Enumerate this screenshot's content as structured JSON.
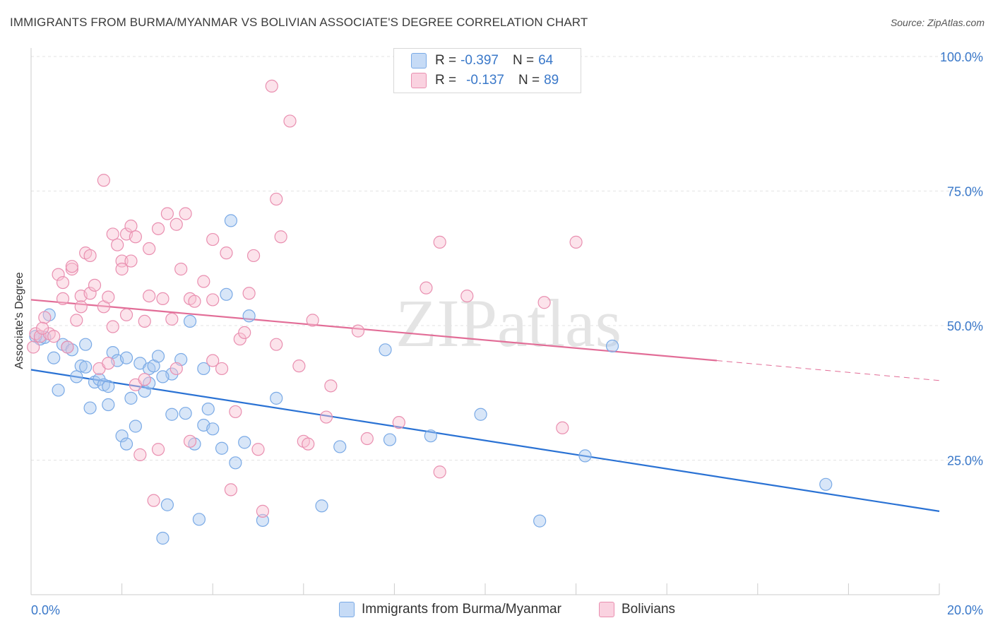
{
  "title": "IMMIGRANTS FROM BURMA/MYANMAR VS BOLIVIAN ASSOCIATE'S DEGREE CORRELATION CHART",
  "source": "Source: ZipAtlas.com",
  "watermark": "ZIPatlas",
  "stats": [
    {
      "r_label": "R =",
      "r_value": "-0.397",
      "n_label": "N =",
      "n_value": "64",
      "color": "#a8c8f0",
      "border": "#6f9fd8"
    },
    {
      "r_label": "R =",
      "r_value": "-0.137",
      "n_label": "N =",
      "n_value": "89",
      "color": "#f8c0d2",
      "border": "#e890ae"
    }
  ],
  "legend": [
    {
      "label": "Immigrants from Burma/Myanmar",
      "color": "#a8c8f0",
      "border": "#6f9fd8"
    },
    {
      "label": "Bolivians",
      "color": "#f8c0d2",
      "border": "#e890ae"
    }
  ],
  "chart_data": {
    "type": "scatter",
    "title": "IMMIGRANTS FROM BURMA/MYANMAR VS BOLIVIAN ASSOCIATE'S DEGREE CORRELATION CHART",
    "xlabel": "",
    "ylabel": "Associate's Degree",
    "xlim": [
      0,
      20
    ],
    "ylim": [
      0,
      100
    ],
    "x_tick_labels": [
      "0.0%",
      "20.0%"
    ],
    "y_ticks": [
      25,
      50,
      75,
      100
    ],
    "y_tick_labels": [
      "25.0%",
      "50.0%",
      "75.0%",
      "100.0%"
    ],
    "grid": true,
    "series": [
      {
        "name": "Immigrants from Burma/Myanmar",
        "color": "#7aaae6",
        "fill": "rgba(168,200,240,0.45)",
        "line_color": "#2a72d4",
        "trend": {
          "x0": 0,
          "y0": 41.8,
          "x1": 20,
          "y1": 15.5
        },
        "points": [
          [
            0.2,
            47.5
          ],
          [
            0.3,
            47.8
          ],
          [
            0.4,
            52.0
          ],
          [
            0.5,
            44.0
          ],
          [
            0.6,
            38.0
          ],
          [
            0.7,
            46.5
          ],
          [
            0.8,
            46.0
          ],
          [
            0.9,
            45.5
          ],
          [
            1.0,
            40.5
          ],
          [
            1.1,
            42.5
          ],
          [
            1.2,
            42.3
          ],
          [
            1.2,
            46.5
          ],
          [
            1.3,
            34.7
          ],
          [
            1.4,
            39.5
          ],
          [
            1.5,
            40.0
          ],
          [
            1.6,
            39.0
          ],
          [
            1.7,
            38.7
          ],
          [
            1.7,
            35.3
          ],
          [
            1.8,
            45.0
          ],
          [
            1.9,
            43.5
          ],
          [
            2.0,
            29.5
          ],
          [
            2.1,
            44.0
          ],
          [
            2.1,
            28.0
          ],
          [
            2.2,
            36.5
          ],
          [
            2.3,
            31.3
          ],
          [
            2.4,
            43.0
          ],
          [
            2.5,
            37.8
          ],
          [
            2.6,
            39.3
          ],
          [
            2.6,
            42.0
          ],
          [
            2.7,
            42.5
          ],
          [
            2.8,
            44.3
          ],
          [
            2.9,
            10.5
          ],
          [
            3.0,
            16.7
          ],
          [
            3.1,
            33.5
          ],
          [
            3.1,
            41.0
          ],
          [
            3.3,
            43.7
          ],
          [
            3.4,
            33.7
          ],
          [
            3.5,
            50.8
          ],
          [
            3.6,
            28.0
          ],
          [
            3.7,
            14.0
          ],
          [
            3.8,
            42.0
          ],
          [
            3.8,
            31.5
          ],
          [
            3.9,
            34.5
          ],
          [
            4.0,
            30.8
          ],
          [
            4.2,
            27.2
          ],
          [
            4.3,
            55.8
          ],
          [
            4.4,
            69.5
          ],
          [
            4.5,
            24.5
          ],
          [
            4.7,
            28.3
          ],
          [
            4.8,
            51.8
          ],
          [
            5.1,
            13.8
          ],
          [
            5.4,
            36.5
          ],
          [
            6.4,
            16.5
          ],
          [
            6.8,
            27.5
          ],
          [
            7.8,
            45.5
          ],
          [
            7.9,
            28.8
          ],
          [
            8.8,
            29.5
          ],
          [
            9.9,
            33.5
          ],
          [
            11.2,
            13.7
          ],
          [
            12.2,
            25.8
          ],
          [
            12.8,
            46.2
          ],
          [
            17.5,
            20.5
          ],
          [
            0.1,
            48.0
          ],
          [
            2.9,
            40.5
          ]
        ]
      },
      {
        "name": "Bolivians",
        "color": "#e98fb0",
        "fill": "rgba(248,192,210,0.45)",
        "line_color": "#e26d97",
        "trend": {
          "x0": 0,
          "y0": 54.8,
          "x1": 15.1,
          "y1": 43.5,
          "dash_x1": 20,
          "dash_y1": 39.8
        },
        "points": [
          [
            0.1,
            48.5
          ],
          [
            0.2,
            48.0
          ],
          [
            0.3,
            51.5
          ],
          [
            0.4,
            48.5
          ],
          [
            0.5,
            48.0
          ],
          [
            0.6,
            59.5
          ],
          [
            0.7,
            58.0
          ],
          [
            0.7,
            55.0
          ],
          [
            0.8,
            46.0
          ],
          [
            0.9,
            60.5
          ],
          [
            0.9,
            61.0
          ],
          [
            1.0,
            51.0
          ],
          [
            1.1,
            55.5
          ],
          [
            1.1,
            53.5
          ],
          [
            1.2,
            63.5
          ],
          [
            1.3,
            56.0
          ],
          [
            1.3,
            63.0
          ],
          [
            1.4,
            57.5
          ],
          [
            1.5,
            42.0
          ],
          [
            1.6,
            77.0
          ],
          [
            1.6,
            53.5
          ],
          [
            1.7,
            55.3
          ],
          [
            1.7,
            43.0
          ],
          [
            1.8,
            67.0
          ],
          [
            1.8,
            49.8
          ],
          [
            1.9,
            65.0
          ],
          [
            2.0,
            62.0
          ],
          [
            2.0,
            60.5
          ],
          [
            2.1,
            52.0
          ],
          [
            2.1,
            67.0
          ],
          [
            2.2,
            62.0
          ],
          [
            2.2,
            68.5
          ],
          [
            2.3,
            66.5
          ],
          [
            2.3,
            39.0
          ],
          [
            2.4,
            26.0
          ],
          [
            2.5,
            40.0
          ],
          [
            2.5,
            50.8
          ],
          [
            2.6,
            55.5
          ],
          [
            2.6,
            64.3
          ],
          [
            2.7,
            17.5
          ],
          [
            2.8,
            27.0
          ],
          [
            2.8,
            68.0
          ],
          [
            2.9,
            55.0
          ],
          [
            3.0,
            70.8
          ],
          [
            3.1,
            51.2
          ],
          [
            3.2,
            68.8
          ],
          [
            3.2,
            42.0
          ],
          [
            3.3,
            60.5
          ],
          [
            3.4,
            70.8
          ],
          [
            3.5,
            55.0
          ],
          [
            3.5,
            28.5
          ],
          [
            3.6,
            54.5
          ],
          [
            3.8,
            58.2
          ],
          [
            4.0,
            43.5
          ],
          [
            4.0,
            66.0
          ],
          [
            4.0,
            54.8
          ],
          [
            4.2,
            42.0
          ],
          [
            4.3,
            63.5
          ],
          [
            4.4,
            19.5
          ],
          [
            4.5,
            34.0
          ],
          [
            4.6,
            47.5
          ],
          [
            4.7,
            48.7
          ],
          [
            4.8,
            56.0
          ],
          [
            4.9,
            63.0
          ],
          [
            5.0,
            27.0
          ],
          [
            5.1,
            15.5
          ],
          [
            5.3,
            94.5
          ],
          [
            5.4,
            73.5
          ],
          [
            5.4,
            46.5
          ],
          [
            5.5,
            66.5
          ],
          [
            5.7,
            88.0
          ],
          [
            5.9,
            42.5
          ],
          [
            6.0,
            28.5
          ],
          [
            6.1,
            28.0
          ],
          [
            6.2,
            51.0
          ],
          [
            6.5,
            33.0
          ],
          [
            6.6,
            38.8
          ],
          [
            7.2,
            49.0
          ],
          [
            7.4,
            29.0
          ],
          [
            8.1,
            32.0
          ],
          [
            8.7,
            57.0
          ],
          [
            9.0,
            22.8
          ],
          [
            9.0,
            65.5
          ],
          [
            9.6,
            55.5
          ],
          [
            11.3,
            54.3
          ],
          [
            11.7,
            31.0
          ],
          [
            12.0,
            65.5
          ],
          [
            0.05,
            46.0
          ],
          [
            0.25,
            49.5
          ]
        ]
      }
    ]
  }
}
